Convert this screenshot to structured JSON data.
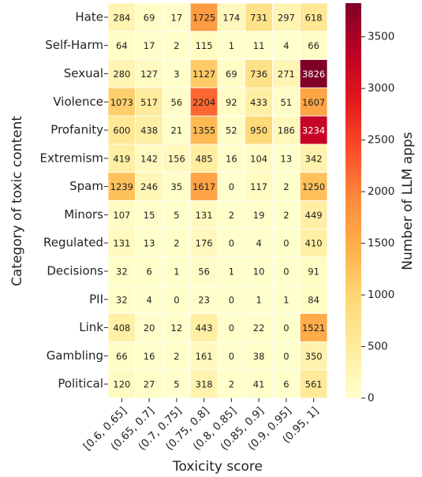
{
  "chart_data": {
    "type": "heatmap",
    "xlabel": "Toxicity score",
    "ylabel": "Category of toxic content",
    "colorbar_label": "Number of LLM apps",
    "x": [
      "[0.6, 0.65]",
      "(0.65, 0.7]",
      "(0.7, 0.75]",
      "(0.75, 0.8]",
      "(0.8, 0.85]",
      "(0.85, 0.9]",
      "(0.9, 0.95]",
      "(0.95, 1]"
    ],
    "categories": [
      "Hate",
      "Self-Harm",
      "Sexual",
      "Violence",
      "Profanity",
      "Extremism",
      "Spam",
      "Minors",
      "Regulated",
      "Decisions",
      "PII",
      "Link",
      "Gambling",
      "Political"
    ],
    "values": [
      [
        284,
        69,
        17,
        1725,
        174,
        731,
        297,
        618
      ],
      [
        64,
        17,
        2,
        115,
        1,
        11,
        4,
        66
      ],
      [
        280,
        127,
        3,
        1127,
        69,
        736,
        271,
        3826
      ],
      [
        1073,
        517,
        56,
        2204,
        92,
        433,
        51,
        1607
      ],
      [
        600,
        438,
        21,
        1355,
        52,
        950,
        186,
        3234
      ],
      [
        419,
        142,
        156,
        485,
        16,
        104,
        13,
        342
      ],
      [
        1239,
        246,
        35,
        1617,
        0,
        117,
        2,
        1250
      ],
      [
        107,
        15,
        5,
        131,
        2,
        19,
        2,
        449
      ],
      [
        131,
        13,
        2,
        176,
        0,
        4,
        0,
        410
      ],
      [
        32,
        6,
        1,
        56,
        1,
        10,
        0,
        91
      ],
      [
        32,
        4,
        0,
        23,
        0,
        1,
        1,
        84
      ],
      [
        408,
        20,
        12,
        443,
        0,
        22,
        0,
        1521
      ],
      [
        66,
        16,
        2,
        161,
        0,
        38,
        0,
        350
      ],
      [
        120,
        27,
        5,
        318,
        2,
        41,
        6,
        561
      ]
    ],
    "zlim": [
      0,
      3826
    ],
    "zticks": [
      0,
      500,
      1000,
      1500,
      2000,
      2500,
      3000,
      3500
    ],
    "colorscale": [
      "#ffffcc",
      "#ffeda0",
      "#fed976",
      "#feb24c",
      "#fd8d3c",
      "#fc4e2a",
      "#e31a1c",
      "#bd0026",
      "#800026"
    ]
  }
}
